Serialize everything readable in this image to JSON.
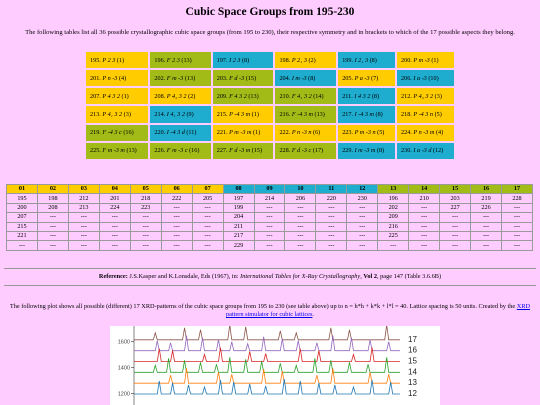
{
  "title": "Cubic Space Groups from 195-230",
  "intro": "The following tables list all 36 possible crystallographic cubic space groups (from 195 to 230), their respective symmetry and in brackets to which of the 17 possible aspects they belong.",
  "colors": {
    "yellow": "#ffcc00",
    "olive": "#a3bb16",
    "cyan": "#1eaccf",
    "page": "#ffccff"
  },
  "space_groups": [
    [
      {
        "num": "195.",
        "sym": "P 2 3",
        "asp": "(1)",
        "c": "yellow"
      },
      {
        "num": "196.",
        "sym": "F 2 3",
        "asp": "(13)",
        "c": "olive"
      },
      {
        "num": "197.",
        "sym": "I 2 3",
        "asp": "(8)",
        "c": "cyan"
      },
      {
        "num": "198.",
        "sym": "P 2₁ 3",
        "asp": "(2)",
        "c": "yellow"
      },
      {
        "num": "199.",
        "sym": "I 2₁ 3",
        "asp": "(8)",
        "c": "cyan"
      },
      {
        "num": "200.",
        "sym": "P m -3",
        "asp": "(1)",
        "c": "yellow"
      }
    ],
    [
      {
        "num": "201.",
        "sym": "P n -3",
        "asp": "(4)",
        "c": "yellow"
      },
      {
        "num": "202.",
        "sym": "F m -3",
        "asp": "(13)",
        "c": "olive"
      },
      {
        "num": "203.",
        "sym": "F d -3",
        "asp": "(15)",
        "c": "olive"
      },
      {
        "num": "204.",
        "sym": "I m -3",
        "asp": "(8)",
        "c": "cyan"
      },
      {
        "num": "205.",
        "sym": "P a -3",
        "asp": "(7)",
        "c": "yellow"
      },
      {
        "num": "206.",
        "sym": "I a -3",
        "asp": "(10)",
        "c": "cyan"
      }
    ],
    [
      {
        "num": "207.",
        "sym": "P 4 3 2",
        "asp": "(1)",
        "c": "yellow"
      },
      {
        "num": "208.",
        "sym": "P 4₂ 3 2",
        "asp": "(2)",
        "c": "yellow"
      },
      {
        "num": "209.",
        "sym": "F 4 3 2",
        "asp": "(13)",
        "c": "olive"
      },
      {
        "num": "210.",
        "sym": "F 4₁ 3 2",
        "asp": "(14)",
        "c": "olive"
      },
      {
        "num": "211.",
        "sym": "I 4 3 2",
        "asp": "(8)",
        "c": "cyan"
      },
      {
        "num": "212.",
        "sym": "P 4₃ 3 2",
        "asp": "(3)",
        "c": "yellow"
      }
    ],
    [
      {
        "num": "213.",
        "sym": "P 4₁ 3 2",
        "asp": "(3)",
        "c": "yellow"
      },
      {
        "num": "214.",
        "sym": "I 4₁ 3 2",
        "asp": "(9)",
        "c": "cyan"
      },
      {
        "num": "215.",
        "sym": "P -4 3 m",
        "asp": "(1)",
        "c": "yellow"
      },
      {
        "num": "216.",
        "sym": "F -4 3 m",
        "asp": "(13)",
        "c": "olive"
      },
      {
        "num": "217.",
        "sym": "I -4 3 m",
        "asp": "(8)",
        "c": "cyan"
      },
      {
        "num": "218.",
        "sym": "P -4 3 n",
        "asp": "(5)",
        "c": "yellow"
      }
    ],
    [
      {
        "num": "219.",
        "sym": "F -4 3 c",
        "asp": "(16)",
        "c": "olive"
      },
      {
        "num": "220.",
        "sym": "I -4 3 d",
        "asp": "(11)",
        "c": "cyan"
      },
      {
        "num": "221.",
        "sym": "P m -3 m",
        "asp": "(1)",
        "c": "yellow"
      },
      {
        "num": "222.",
        "sym": "P n -3 n",
        "asp": "(6)",
        "c": "yellow"
      },
      {
        "num": "223.",
        "sym": "P m -3 n",
        "asp": "(5)",
        "c": "yellow"
      },
      {
        "num": "224.",
        "sym": "P n -3 m",
        "asp": "(4)",
        "c": "yellow"
      }
    ],
    [
      {
        "num": "225.",
        "sym": "F m -3 m",
        "asp": "(13)",
        "c": "olive"
      },
      {
        "num": "226.",
        "sym": "F m -3 c",
        "asp": "(16)",
        "c": "olive"
      },
      {
        "num": "227.",
        "sym": "F d -3 m",
        "asp": "(15)",
        "c": "olive"
      },
      {
        "num": "228.",
        "sym": "F d -3 c",
        "asp": "(17)",
        "c": "olive"
      },
      {
        "num": "229.",
        "sym": "I m -3 m",
        "asp": "(8)",
        "c": "cyan"
      },
      {
        "num": "230.",
        "sym": "I a -3 d",
        "asp": "(12)",
        "c": "cyan"
      }
    ]
  ],
  "aspect_table": {
    "headers": [
      "01",
      "02",
      "03",
      "04",
      "05",
      "06",
      "07",
      "08",
      "09",
      "10",
      "11",
      "12",
      "13",
      "14",
      "15",
      "16",
      "17"
    ],
    "header_colors": [
      "yellow",
      "yellow",
      "yellow",
      "yellow",
      "yellow",
      "yellow",
      "yellow",
      "cyan",
      "cyan",
      "cyan",
      "cyan",
      "cyan",
      "olive",
      "olive",
      "olive",
      "olive",
      "olive"
    ],
    "rows": [
      [
        "195",
        "198",
        "212",
        "201",
        "218",
        "222",
        "205",
        "197",
        "214",
        "206",
        "220",
        "230",
        "196",
        "210",
        "203",
        "219",
        "228"
      ],
      [
        "200",
        "208",
        "213",
        "224",
        "223",
        "---",
        "---",
        "199",
        "---",
        "---",
        "---",
        "---",
        "202",
        "---",
        "227",
        "226",
        "---"
      ],
      [
        "207",
        "---",
        "---",
        "---",
        "---",
        "---",
        "---",
        "204",
        "---",
        "---",
        "---",
        "---",
        "209",
        "---",
        "---",
        "---",
        "---"
      ],
      [
        "215",
        "---",
        "---",
        "---",
        "---",
        "---",
        "---",
        "211",
        "---",
        "---",
        "---",
        "---",
        "216",
        "---",
        "---",
        "---",
        "---"
      ],
      [
        "221",
        "---",
        "---",
        "---",
        "---",
        "---",
        "---",
        "217",
        "---",
        "---",
        "---",
        "---",
        "225",
        "---",
        "---",
        "---",
        "---"
      ],
      [
        "---",
        "---",
        "---",
        "---",
        "---",
        "---",
        "---",
        "229",
        "---",
        "---",
        "---",
        "---",
        "---",
        "---",
        "---",
        "---",
        "---"
      ]
    ]
  },
  "reference": {
    "label": "Reference:",
    "authors": "J.S.Kasper and K.Lonsdale, Eds (1967), in:",
    "book": "International Tables for X-Ray Crystallography",
    "vol": "Vol 2",
    "pages": ", page 147 (Table 3.6.6B)"
  },
  "plot_text": {
    "before": "The following plot shows all possible (different) 17 XRD-patterns of the cubic space groups from 195 to 230 (see table above) up to n = h*h + k*k + l*l = 40. Lattice spacing is 50 units. Created by the",
    "link": "XRD pattern simulator for cubic lattices",
    "after": "."
  },
  "plot": {
    "yticks": [
      1600,
      1400,
      1200
    ],
    "ylim": [
      1080,
      1720
    ],
    "series_labels": [
      "17",
      "16",
      "15",
      "14",
      "13",
      "12"
    ],
    "series_colors": [
      "#8c564b",
      "#9467bd",
      "#d62728",
      "#2ca02c",
      "#ff7f0e",
      "#1f77b4"
    ]
  }
}
